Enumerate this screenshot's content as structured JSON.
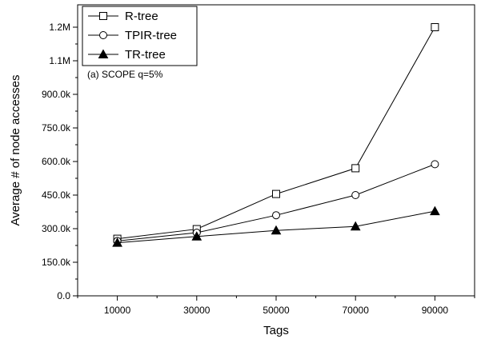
{
  "chart_data": {
    "type": "line",
    "title": "",
    "annotation": "(a) SCOPE q=5%",
    "xlabel": "Tags",
    "ylabel": "Average # of node accesses",
    "x": [
      10000,
      30000,
      50000,
      70000,
      90000
    ],
    "x_tick_labels": [
      "10000",
      "30000",
      "50000",
      "70000",
      "90000"
    ],
    "xlim": [
      0,
      100000
    ],
    "ylim": [
      0,
      1300000
    ],
    "y_ticks": [
      0,
      150000,
      300000,
      450000,
      600000,
      750000,
      900000,
      1050000,
      1200000
    ],
    "y_tick_labels": [
      "0.0",
      "150.0k",
      "300.0k",
      "450.0k",
      "600.0k",
      "750.0k",
      "900.0k",
      "1.1M",
      "1.2M"
    ],
    "legend_position": "top-left",
    "grid": false,
    "series": [
      {
        "name": "R-tree",
        "marker": "open-square",
        "color": "#000000",
        "values": [
          255000,
          298000,
          455000,
          570000,
          1200000
        ]
      },
      {
        "name": "TPIR-tree",
        "marker": "open-circle",
        "color": "#000000",
        "values": [
          245000,
          282000,
          360000,
          450000,
          588000
        ]
      },
      {
        "name": "TR-tree",
        "marker": "filled-triangle",
        "color": "#000000",
        "values": [
          237000,
          265000,
          292000,
          310000,
          378000
        ]
      }
    ]
  }
}
